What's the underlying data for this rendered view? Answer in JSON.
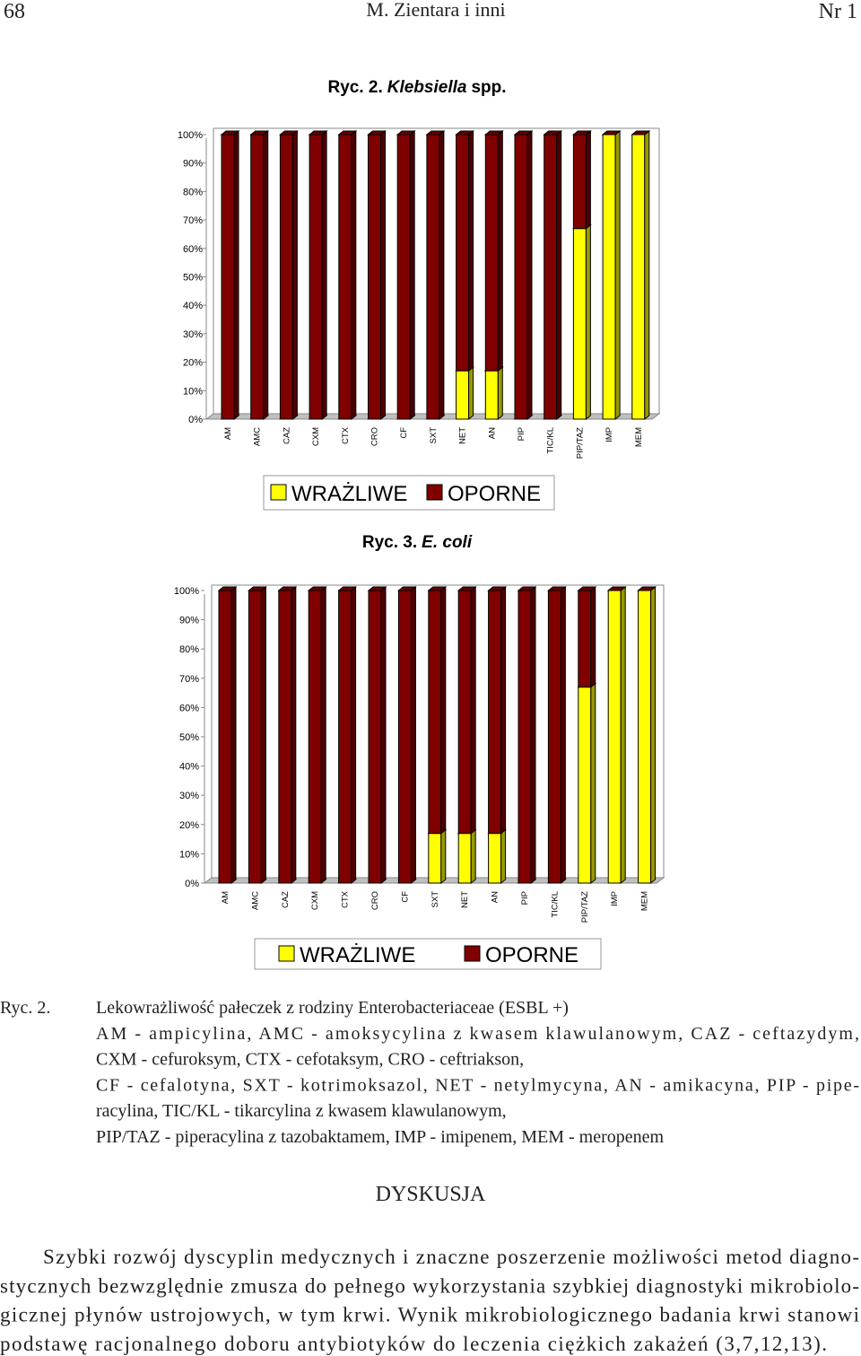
{
  "header": {
    "page": "68",
    "authors": "M. Zientara i inni",
    "issue": "Nr 1"
  },
  "chart_data": [
    {
      "type": "stacked-bar-3d",
      "title_parts": [
        "Ryc. 2.",
        "Klebsiella",
        "spp."
      ],
      "categories": [
        "AM",
        "AMC",
        "CAZ",
        "CXM",
        "CTX",
        "CRO",
        "CF",
        "SXT",
        "NET",
        "AN",
        "PIP",
        "TIC/KL",
        "PIP/TAZ",
        "IMP",
        "MEM"
      ],
      "series": [
        {
          "name": "WRAŻLIWE",
          "color": "#ffff00",
          "values": [
            0,
            0,
            0,
            0,
            0,
            0,
            0,
            0,
            17,
            17,
            0,
            0,
            67,
            100,
            100
          ]
        },
        {
          "name": "OPORNE",
          "color": "#800000",
          "values": [
            100,
            100,
            100,
            100,
            100,
            100,
            100,
            100,
            83,
            83,
            100,
            100,
            33,
            0,
            0
          ]
        }
      ],
      "ylim": [
        0,
        100
      ],
      "yticks": [
        {
          "value": 0,
          "label": "0%"
        },
        {
          "value": 10,
          "label": "10%"
        },
        {
          "value": 20,
          "label": "20%"
        },
        {
          "value": 30,
          "label": "30%"
        },
        {
          "value": 40,
          "label": "40%"
        },
        {
          "value": 50,
          "label": "50%"
        },
        {
          "value": 60,
          "label": "60%"
        },
        {
          "value": 70,
          "label": "70%"
        },
        {
          "value": 80,
          "label": "80%"
        },
        {
          "value": 90,
          "label": "90%"
        },
        {
          "value": 100,
          "label": "100%"
        }
      ],
      "legend": "bottom"
    },
    {
      "type": "stacked-bar-3d",
      "title_parts": [
        "Ryc. 3.",
        "E. coli"
      ],
      "categories": [
        "AM",
        "AMC",
        "CAZ",
        "CXM",
        "CTX",
        "CRO",
        "CF",
        "SXT",
        "NET",
        "AN",
        "PIP",
        "TIC/KL",
        "PIP/TAZ",
        "IMP",
        "MEM"
      ],
      "series": [
        {
          "name": "WRAŻLIWE",
          "color": "#ffff00",
          "values": [
            0,
            0,
            0,
            0,
            0,
            0,
            0,
            17,
            17,
            17,
            0,
            0,
            67,
            100,
            100
          ]
        },
        {
          "name": "OPORNE",
          "color": "#800000",
          "values": [
            100,
            100,
            100,
            100,
            100,
            100,
            100,
            83,
            83,
            83,
            100,
            100,
            33,
            0,
            0
          ]
        }
      ],
      "ylim": [
        0,
        100
      ],
      "yticks": [
        {
          "value": 0,
          "label": "0%"
        },
        {
          "value": 10,
          "label": "10%"
        },
        {
          "value": 20,
          "label": "20%"
        },
        {
          "value": 30,
          "label": "30%"
        },
        {
          "value": 40,
          "label": "40%"
        },
        {
          "value": 50,
          "label": "50%"
        },
        {
          "value": 60,
          "label": "60%"
        },
        {
          "value": 70,
          "label": "70%"
        },
        {
          "value": 80,
          "label": "80%"
        },
        {
          "value": 90,
          "label": "90%"
        },
        {
          "value": 100,
          "label": "100%"
        }
      ],
      "legend": "bottom"
    }
  ],
  "caption": {
    "label": "Ryc. 2.",
    "lines": [
      "Lekowrażliwość pałeczek z rodziny Enterobacteriaceae (ESBL +)",
      "AM - ampicylina, AMC - amoksycylina z kwasem klawulanowym, CAZ - ceftazydym,",
      "CXM - cefuroksym, CTX - cefotaksym, CRO - ceftriakson,",
      "CF - cefalotyna, SXT - kotrimoksazol, NET - netylmycyna, AN - amikacyna, PIP - pipe-",
      "racylina, TIC/KL - tikarcylina z kwasem klawulanowym,",
      "PIP/TAZ - piperacylina z tazobaktamem, IMP - imipenem, MEM - meropenem"
    ]
  },
  "section": {
    "title": "DYSKUSJA",
    "lines": [
      "Szybki rozwój dyscyplin medycznych i znaczne poszerzenie możliwości metod diagno-",
      "stycznych bezwzględnie zmusza do pełnego wykorzystania szybkiej diagnostyki mikrobiolo-",
      "gicznej płynów ustrojowych, w tym krwi. Wynik mikrobiologicznego badania krwi stanowi",
      "podstawę racjonalnego doboru antybiotyków do leczenia ciężkich zakażeń (3,7,12,13)."
    ]
  }
}
